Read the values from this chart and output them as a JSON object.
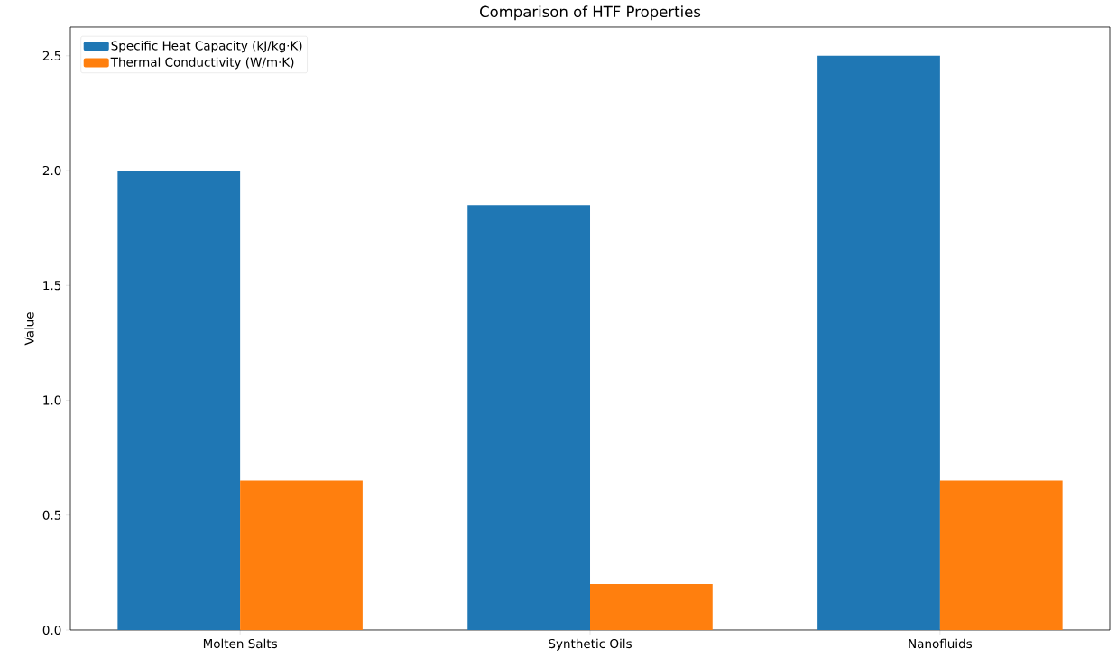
{
  "chart_data": {
    "type": "bar",
    "title": "Comparison of HTF Properties",
    "ylabel": "Value",
    "categories": [
      "Molten Salts",
      "Synthetic Oils",
      "Nanofluids"
    ],
    "series": [
      {
        "name": "Specific Heat Capacity (kJ/kg·K)",
        "color": "#1f77b4",
        "values": [
          2.0,
          1.85,
          2.5
        ]
      },
      {
        "name": "Thermal Conductivity (W/m·K)",
        "color": "#ff7f0e",
        "values": [
          0.65,
          0.2,
          0.65
        ]
      }
    ],
    "ylim": [
      0,
      2.625
    ],
    "yticks": [
      {
        "value": 0,
        "label": "0.0"
      },
      {
        "value": 0.5,
        "label": "0.5"
      },
      {
        "value": 1,
        "label": "1.0"
      },
      {
        "value": 1.5,
        "label": "1.5"
      },
      {
        "value": 2,
        "label": "2.0"
      },
      {
        "value": 2.5,
        "label": "2.5"
      }
    ],
    "grid": false,
    "legend": "top left"
  }
}
